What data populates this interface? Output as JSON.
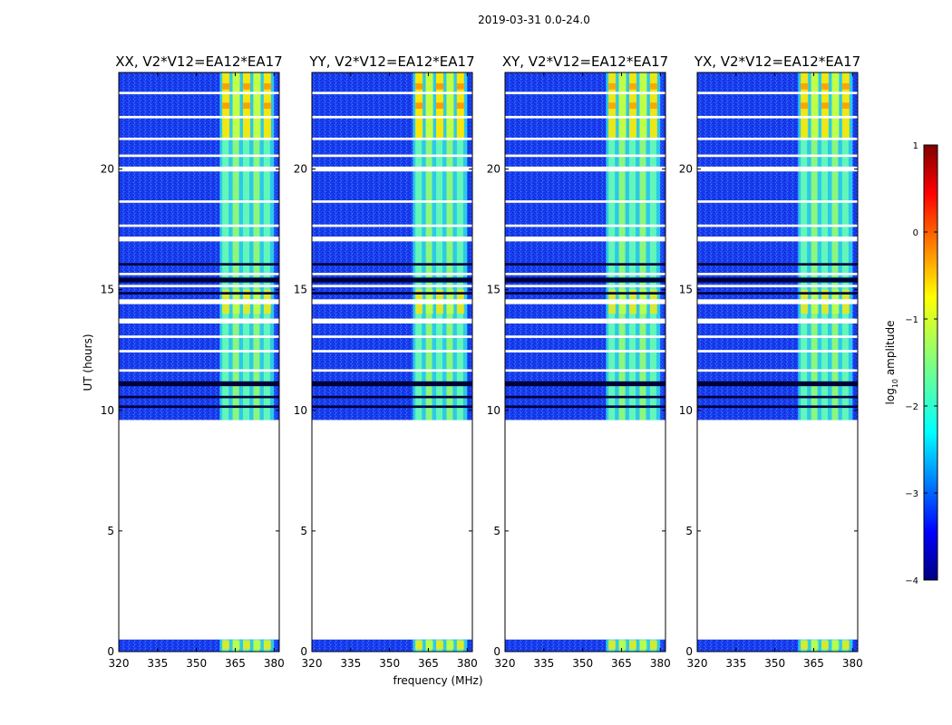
{
  "chart_data": {
    "type": "heatmap",
    "suptitle": "2019-03-31 0.0-24.0",
    "xlabel": "frequency (MHz)",
    "ylabel": "UT (hours)",
    "xlim": [
      320,
      382
    ],
    "ylim": [
      0,
      24
    ],
    "xticks": [
      320,
      335,
      350,
      365,
      380
    ],
    "yticks": [
      0,
      5,
      10,
      15,
      20
    ],
    "panels": [
      {
        "title": "XX, V2*V12=EA12*EA17",
        "peak": 0.9
      },
      {
        "title": "YY, V2*V12=EA12*EA17",
        "peak": 1.0
      },
      {
        "title": "XY, V2*V12=EA12*EA17",
        "peak": 0.8
      },
      {
        "title": "YX, V2*V12=EA12*EA17",
        "peak": 0.85
      }
    ],
    "data_hours": [
      [
        0.0,
        0.5
      ],
      [
        9.6,
        24.0
      ]
    ],
    "rfi_band_mhz": [
      359,
      380
    ],
    "rfi_channels_mhz": [
      360,
      364,
      368,
      372,
      376
    ],
    "gap_hours": [
      [
        11.6,
        11.7
      ],
      [
        12.4,
        12.5
      ],
      [
        13.0,
        13.1
      ],
      [
        13.6,
        13.8
      ],
      [
        14.4,
        14.6
      ],
      [
        15.1,
        15.2
      ],
      [
        15.6,
        15.7
      ],
      [
        17.0,
        17.2
      ],
      [
        17.6,
        17.7
      ],
      [
        18.6,
        18.7
      ],
      [
        19.9,
        20.1
      ],
      [
        20.5,
        20.6
      ],
      [
        21.2,
        21.3
      ],
      [
        22.1,
        22.2
      ],
      [
        23.1,
        23.2
      ]
    ],
    "dark_hours": [
      [
        10.1,
        10.2
      ],
      [
        10.5,
        10.6
      ],
      [
        11.0,
        11.2
      ],
      [
        14.8,
        14.9
      ],
      [
        15.3,
        15.5
      ],
      [
        16.0,
        16.1
      ]
    ],
    "colorbar": {
      "label": "log10 amplitude",
      "label_main": "log",
      "label_sub": "10",
      "label_rest": " amplitude",
      "min": -4,
      "max": 1,
      "ticks": [
        "1",
        "0",
        "−1",
        "−2",
        "−3",
        "−4"
      ],
      "tick_values": [
        1,
        0,
        -1,
        -2,
        -3,
        -4
      ],
      "colormap": "jet"
    }
  }
}
